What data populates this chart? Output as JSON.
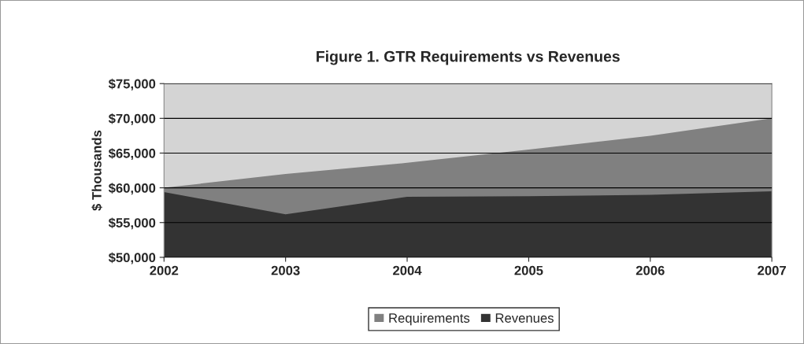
{
  "chart_data": {
    "type": "area",
    "title": "Figure 1. GTR Requirements vs Revenues",
    "ylabel": "$ Thousands",
    "x": [
      2002,
      2003,
      2004,
      2005,
      2006,
      2007
    ],
    "series": [
      {
        "name": "Requirements",
        "color": "#808080",
        "values": [
          60000,
          62000,
          63600,
          65500,
          67500,
          70000
        ]
      },
      {
        "name": "Revenues",
        "color": "#333333",
        "values": [
          59400,
          56200,
          58700,
          58800,
          59000,
          59500
        ]
      }
    ],
    "xlim": [
      2002,
      2007
    ],
    "xticks": [
      2002,
      2003,
      2004,
      2005,
      2006,
      2007
    ],
    "ylim": [
      50000,
      75000
    ],
    "yticks": [
      {
        "value": 50000,
        "label": "$50,000"
      },
      {
        "value": 55000,
        "label": "$55,000"
      },
      {
        "value": 60000,
        "label": "$60,000"
      },
      {
        "value": 65000,
        "label": "$65,000"
      },
      {
        "value": 70000,
        "label": "$70,000"
      },
      {
        "value": 75000,
        "label": "$75,000"
      }
    ],
    "grid": "y",
    "legend": "bottom"
  }
}
